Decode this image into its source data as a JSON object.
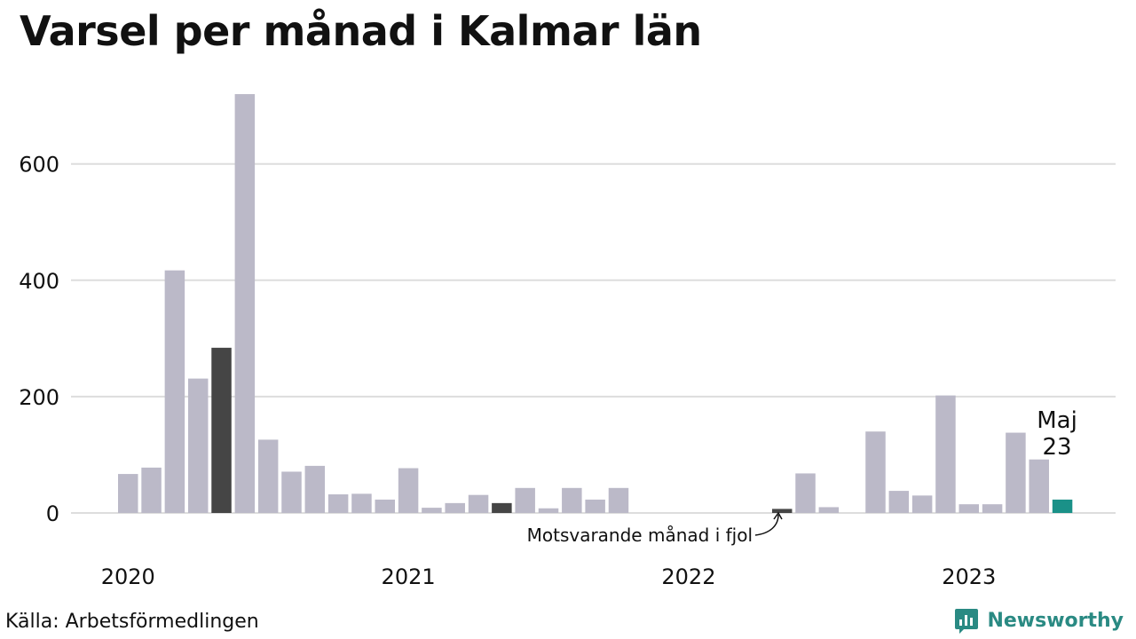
{
  "title": "Varsel per månad i Kalmar län",
  "source": "Källa: Arbetsförmedlingen",
  "brand": "Newsworthy",
  "annotations": {
    "last_month_line1": "Maj",
    "last_month_line2": "23",
    "previous_year": "Motsvarande månad i fjol"
  },
  "colors": {
    "bar_default": "#bbb9c8",
    "bar_same_month": "#454545",
    "bar_current": "#1a9188",
    "grid": "#dddddd",
    "brand": "#2a8a83"
  },
  "chart_data": {
    "type": "bar",
    "title": "Varsel per månad i Kalmar län",
    "xlabel": "",
    "ylabel": "",
    "ylim": [
      0,
      720
    ],
    "yticks": [
      0,
      200,
      400,
      600
    ],
    "x_tick_labels": [
      "2020",
      "2021",
      "2022",
      "2023"
    ],
    "grid": true,
    "categories": [
      "2020-01",
      "2020-02",
      "2020-03",
      "2020-04",
      "2020-05",
      "2020-06",
      "2020-07",
      "2020-08",
      "2020-09",
      "2020-10",
      "2020-11",
      "2020-12",
      "2021-01",
      "2021-02",
      "2021-03",
      "2021-04",
      "2021-05",
      "2021-06",
      "2021-07",
      "2021-08",
      "2021-09",
      "2021-10",
      "2021-11",
      "2021-12",
      "2022-01",
      "2022-02",
      "2022-03",
      "2022-04",
      "2022-05",
      "2022-06",
      "2022-07",
      "2022-08",
      "2022-09",
      "2022-10",
      "2022-11",
      "2022-12",
      "2023-01",
      "2023-02",
      "2023-03",
      "2023-04",
      "2023-05"
    ],
    "values": [
      67,
      78,
      417,
      231,
      284,
      720,
      126,
      71,
      81,
      32,
      33,
      23,
      77,
      9,
      17,
      31,
      17,
      43,
      8,
      43,
      23,
      43,
      0,
      0,
      0,
      0,
      0,
      0,
      7,
      68,
      10,
      0,
      140,
      38,
      30,
      202,
      15,
      15,
      138,
      92,
      23
    ],
    "highlight_same_month": [
      "2020-05",
      "2021-05",
      "2022-05"
    ],
    "highlight_current": "2023-05"
  }
}
